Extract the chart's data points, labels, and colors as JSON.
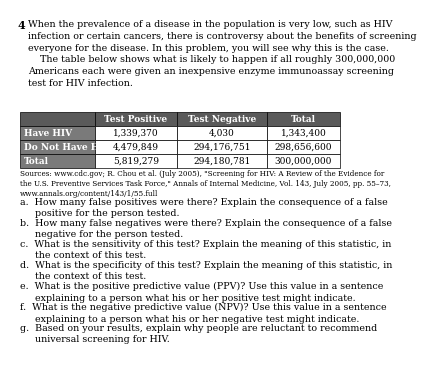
{
  "question_number": "4",
  "intro_text": "When the prevalence of a disease in the population is very low, such as HIV\ninfection or certain cancers, there is controversy about the benefits of screening\neveryone for the disease. In this problem, you will see why this is the case.\n    The table below shows what is likely to happen if all roughly 300,000,000\nAmericans each were given an inexpensive enzyme immunoassay screening\ntest for HIV infection.",
  "table": {
    "headers": [
      "",
      "Test Positive",
      "Test Negative",
      "Total"
    ],
    "rows": [
      [
        "Have HIV",
        "1,339,370",
        "4,030",
        "1,343,400"
      ],
      [
        "Do Not Have HIV",
        "4,479,849",
        "294,176,751",
        "298,656,600"
      ],
      [
        "Total",
        "5,819,279",
        "294,180,781",
        "300,000,000"
      ]
    ],
    "header_bg": "#5a5a5a",
    "label_col_bg": "#7a7a7a",
    "header_text_color": "#ffffff",
    "label_text_color": "#ffffff",
    "data_text_color": "#000000",
    "data_bg": "#ffffff",
    "border_color": "#000000"
  },
  "sources": "Sources: www.cdc.gov; R. Chou et al. (July 2005), \"Screening for HIV: A Review of the Evidence for\nthe U.S. Preventive Services Task Force,\" Annals of Internal Medicine, Vol. 143, July 2005, pp. 55–73,\nwww.annals.org/content/143/1/55.full",
  "questions": [
    "a.  How many false positives were there? Explain the consequence of a false\n     positive for the person tested.",
    "b.  How many false negatives were there? Explain the consequence of a false\n     negative for the person tested.",
    "c.  What is the sensitivity of this test? Explain the meaning of this statistic, in\n     the context of this test.",
    "d.  What is the specificity of this test? Explain the meaning of this statistic, in\n     the context of this test.",
    "e.  What is the positive predictive value (PPV)? Use this value in a sentence\n     explaining to a person what his or her positive test might indicate.",
    "f.  What is the negative predictive value (NPV)? Use this value in a sentence\n     explaining to a person what his or her negative test might indicate.",
    "g.  Based on your results, explain why people are reluctant to recommend\n     universal screening for HIV."
  ],
  "bg_color": "#ffffff",
  "text_color": "#000000",
  "font_size_intro": 6.8,
  "font_size_table": 6.5,
  "font_size_sources": 5.2,
  "font_size_questions": 6.8
}
